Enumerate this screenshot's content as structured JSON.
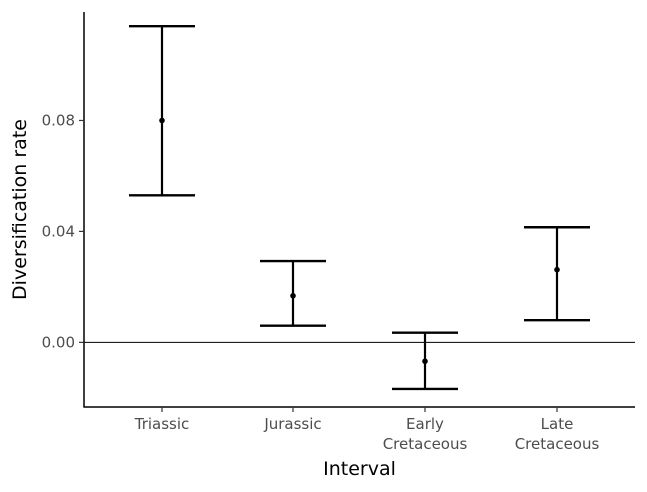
{
  "chart_data": {
    "type": "errorbar",
    "xlabel": "Interval",
    "ylabel": "Diversification rate",
    "categories": [
      [
        "Triassic"
      ],
      [
        "Jurassic"
      ],
      [
        "Early",
        "Cretaceous"
      ],
      [
        "Late",
        "Cretaceous"
      ]
    ],
    "points": [
      {
        "category": "Triassic",
        "value": 0.08,
        "lower": 0.053,
        "upper": 0.114
      },
      {
        "category": "Jurassic",
        "value": 0.0168,
        "lower": 0.006,
        "upper": 0.0293
      },
      {
        "category": "Early Cretaceous",
        "value": -0.0068,
        "lower": -0.0168,
        "upper": 0.0035
      },
      {
        "category": "Late Cretaceous",
        "value": 0.0262,
        "lower": 0.008,
        "upper": 0.0415
      }
    ],
    "yticks": [
      0.0,
      0.04,
      0.08
    ],
    "ytick_labels": [
      "0.00",
      "0.04",
      "0.08"
    ],
    "ylim": [
      -0.0233,
      0.1191
    ],
    "reference_line": 0,
    "grid": false,
    "colors": {
      "bars": "#000000",
      "axis": "#000000",
      "tick_text": "#4d4d4d"
    }
  }
}
